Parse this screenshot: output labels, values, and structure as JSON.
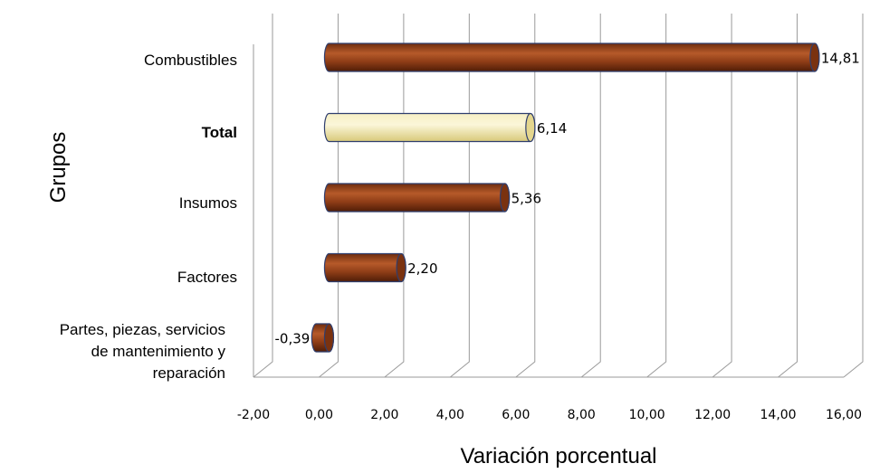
{
  "chart_data": {
    "type": "bar",
    "orientation": "horizontal",
    "categories": [
      "Combustibles",
      "Total",
      "Insumos",
      "Factores",
      "Partes, piezas, servicios de mantenimiento y reparación"
    ],
    "category_label_lines": [
      [
        "Combustibles"
      ],
      [
        "Total"
      ],
      [
        "Insumos"
      ],
      [
        "Factores"
      ],
      [
        "Partes, piezas, servicios",
        "de mantenimiento y",
        "reparación"
      ]
    ],
    "values": [
      14.81,
      6.14,
      5.36,
      2.2,
      -0.39
    ],
    "value_labels": [
      "14,81",
      "6,14",
      "5,36",
      "2,20",
      "-0,39"
    ],
    "highlight_category": "Total",
    "xlabel": "Variación porcentual",
    "ylabel": "Grupos",
    "xlim": [
      -2,
      16
    ],
    "xticks": [
      -2,
      0,
      2,
      4,
      6,
      8,
      10,
      12,
      14,
      16
    ],
    "xtick_labels": [
      "-2,00",
      "0,00",
      "2,00",
      "4,00",
      "6,00",
      "8,00",
      "10,00",
      "12,00",
      "14,00",
      "16,00"
    ],
    "grid": true,
    "legend": "none",
    "colors": {
      "bar": "#8B3A14",
      "bar_highlight": "#E9DFA0",
      "bar_outline": "#2F3E6E",
      "grid": "#9a9a9a"
    }
  }
}
